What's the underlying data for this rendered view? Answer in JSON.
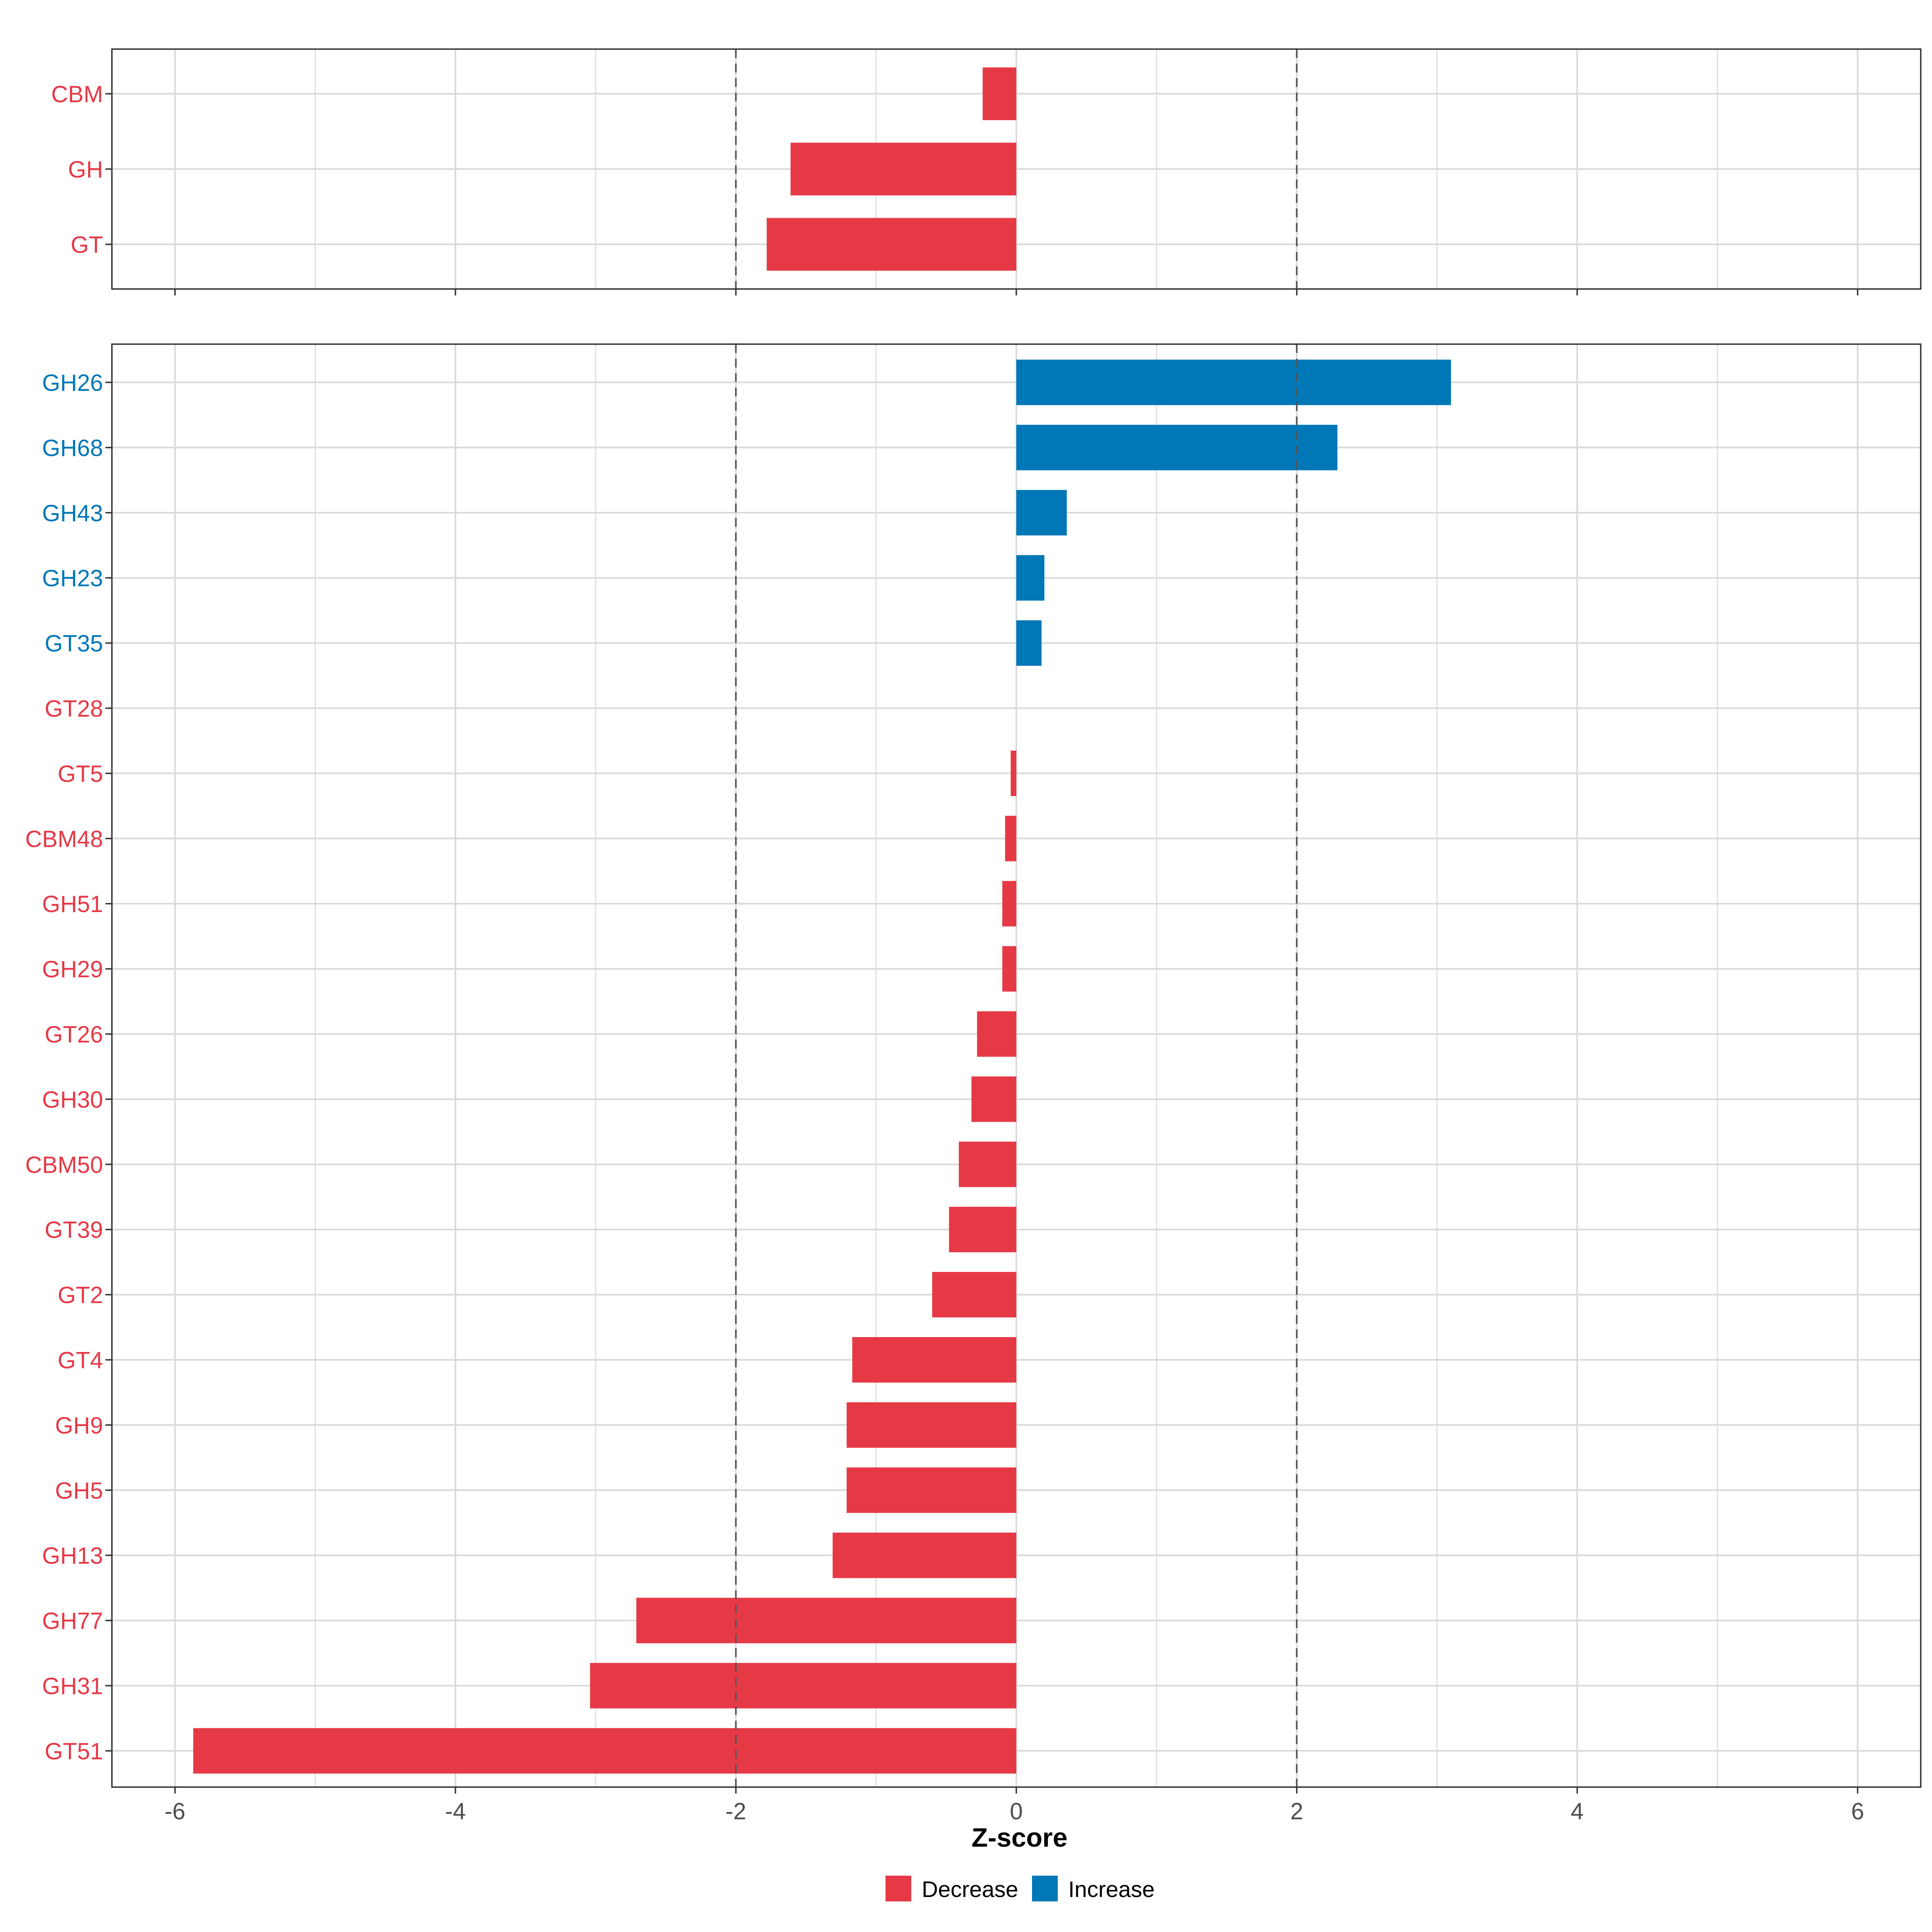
{
  "colors": {
    "decrease": "#E63946",
    "increase": "#0077B6",
    "grid": "#D9D9D9",
    "axis_text": "#4D4D4D",
    "panel_border": "#333333",
    "threshold_line": "#555555"
  },
  "chart_data": [
    {
      "type": "bar",
      "orientation": "horizontal",
      "panel": "top",
      "categories": [
        "CBM",
        "GH",
        "GT"
      ],
      "values": [
        -0.24,
        -1.61,
        -1.78
      ],
      "directions": [
        "Decrease",
        "Decrease",
        "Decrease"
      ],
      "xlim": [
        -6.45,
        6.45
      ],
      "xticks": [
        -6,
        -4,
        -2,
        0,
        2,
        4,
        6
      ],
      "thresholds": [
        -2,
        2
      ],
      "grid": true
    },
    {
      "type": "bar",
      "orientation": "horizontal",
      "panel": "bottom",
      "categories": [
        "GH26",
        "GH68",
        "GH43",
        "GH23",
        "GT35",
        "GT28",
        "GT5",
        "CBM48",
        "GH51",
        "GH29",
        "GT26",
        "GH30",
        "CBM50",
        "GT39",
        "GT2",
        "GT4",
        "GH9",
        "GH5",
        "GH13",
        "GH77",
        "GH31",
        "GT51"
      ],
      "values": [
        3.1,
        2.29,
        0.36,
        0.2,
        0.18,
        0.0,
        -0.04,
        -0.08,
        -0.1,
        -0.1,
        -0.28,
        -0.32,
        -0.41,
        -0.48,
        -0.6,
        -1.17,
        -1.21,
        -1.21,
        -1.31,
        -2.71,
        -3.04,
        -5.87
      ],
      "directions": [
        "Increase",
        "Increase",
        "Increase",
        "Increase",
        "Increase",
        "Decrease",
        "Decrease",
        "Decrease",
        "Decrease",
        "Decrease",
        "Decrease",
        "Decrease",
        "Decrease",
        "Decrease",
        "Decrease",
        "Decrease",
        "Decrease",
        "Decrease",
        "Decrease",
        "Decrease",
        "Decrease",
        "Decrease"
      ],
      "xlim": [
        -6.45,
        6.45
      ],
      "xticks": [
        -6,
        -4,
        -2,
        0,
        2,
        4,
        6
      ],
      "xtick_labels": [
        "-6",
        "-4",
        "-2",
        "0",
        "2",
        "4",
        "6"
      ],
      "thresholds": [
        -2,
        2
      ],
      "grid": true
    }
  ],
  "xlabel": "Z-score",
  "legend": {
    "placement": "bottom",
    "items": [
      {
        "label": "Decrease",
        "key": "decrease"
      },
      {
        "label": "Increase",
        "key": "increase"
      }
    ]
  }
}
